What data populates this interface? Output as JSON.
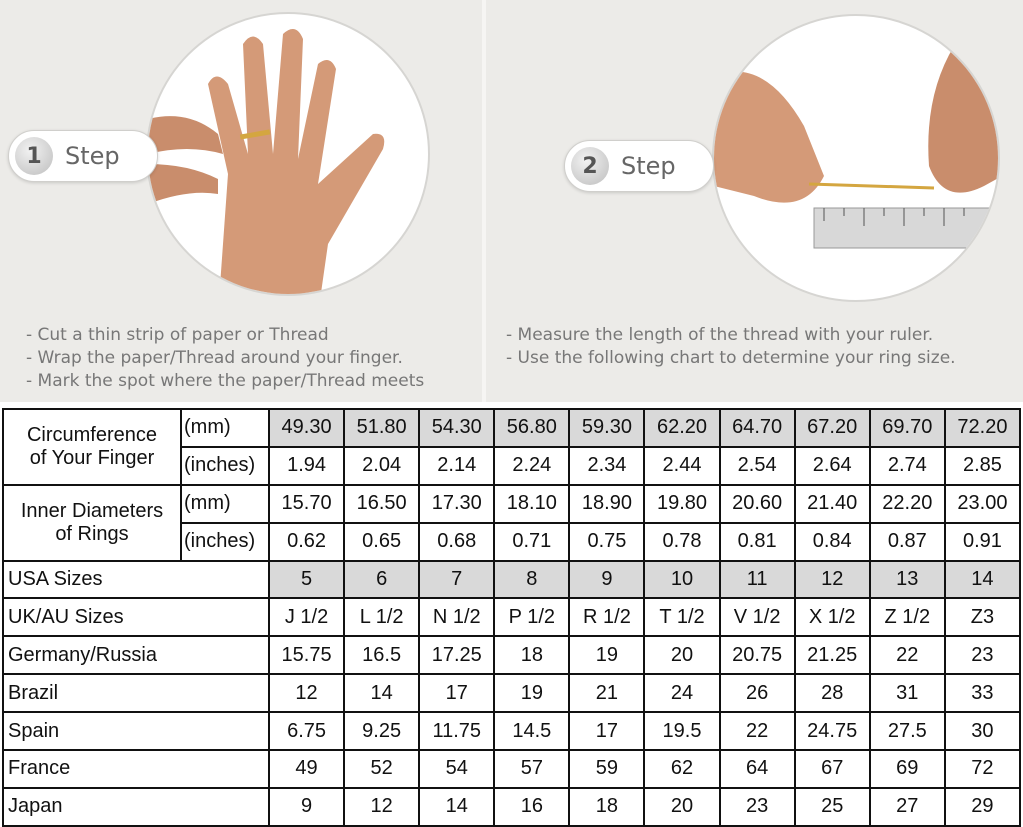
{
  "step1": {
    "number": "1",
    "label": "Step",
    "instructions": [
      "- Cut a thin strip of paper or Thread",
      "- Wrap the paper/Thread around your finger.",
      "- Mark the spot where the paper/Thread meets"
    ]
  },
  "step2": {
    "number": "2",
    "label": "Step",
    "instructions": [
      "- Measure the length of the thread with your ruler.",
      "- Use the following chart to determine your ring size."
    ]
  },
  "table": {
    "circumference": {
      "label_line1": "Circumference",
      "label_line2": "of Your Finger",
      "unit_mm": "(mm)",
      "unit_in": "(inches)",
      "mm": [
        "49.30",
        "51.80",
        "54.30",
        "56.80",
        "59.30",
        "62.20",
        "64.70",
        "67.20",
        "69.70",
        "72.20"
      ],
      "inches": [
        "1.94",
        "2.04",
        "2.14",
        "2.24",
        "2.34",
        "2.44",
        "2.54",
        "2.64",
        "2.74",
        "2.85"
      ]
    },
    "diameter": {
      "label_line1": "Inner Diameters",
      "label_line2": "of Rings",
      "unit_mm": "(mm)",
      "unit_in": "(inches)",
      "mm": [
        "15.70",
        "16.50",
        "17.30",
        "18.10",
        "18.90",
        "19.80",
        "20.60",
        "21.40",
        "22.20",
        "23.00"
      ],
      "inches": [
        "0.62",
        "0.65",
        "0.68",
        "0.71",
        "0.75",
        "0.78",
        "0.81",
        "0.84",
        "0.87",
        "0.91"
      ]
    },
    "rows": [
      {
        "label": "USA Sizes",
        "values": [
          "5",
          "6",
          "7",
          "8",
          "9",
          "10",
          "11",
          "12",
          "13",
          "14"
        ]
      },
      {
        "label": "UK/AU Sizes",
        "values": [
          "J 1/2",
          "L 1/2",
          "N 1/2",
          "P 1/2",
          "R 1/2",
          "T 1/2",
          "V 1/2",
          "X 1/2",
          "Z 1/2",
          "Z3"
        ]
      },
      {
        "label": "Germany/Russia",
        "values": [
          "15.75",
          "16.5",
          "17.25",
          "18",
          "19",
          "20",
          "20.75",
          "21.25",
          "22",
          "23"
        ]
      },
      {
        "label": "Brazil",
        "values": [
          "12",
          "14",
          "17",
          "19",
          "21",
          "24",
          "26",
          "28",
          "31",
          "33"
        ]
      },
      {
        "label": "Spain",
        "values": [
          "6.75",
          "9.25",
          "11.75",
          "14.5",
          "17",
          "19.5",
          "22",
          "24.75",
          "27.5",
          "30"
        ]
      },
      {
        "label": "France",
        "values": [
          "49",
          "52",
          "54",
          "57",
          "59",
          "62",
          "64",
          "67",
          "69",
          "72"
        ]
      },
      {
        "label": "Japan",
        "values": [
          "9",
          "12",
          "14",
          "16",
          "18",
          "20",
          "23",
          "25",
          "27",
          "29"
        ]
      }
    ]
  },
  "colors": {
    "shaded": "#d9d9d9",
    "background": "#ecebe8"
  }
}
